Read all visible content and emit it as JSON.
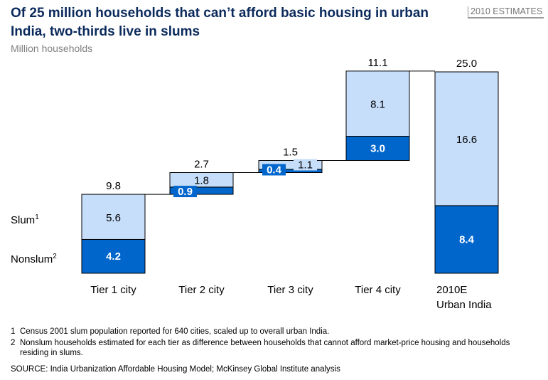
{
  "header": {
    "title": "Of 25 million households that can’t afford basic housing in urban India, two-thirds live in slums",
    "subtitle": "Million households",
    "badge": "2010 ESTIMATES"
  },
  "chart_data": {
    "type": "waterfall-stacked-bar",
    "unit": "Million households",
    "categories": [
      "Tier 1 city",
      "Tier 2 city",
      "Tier 3 city",
      "Tier 4 city",
      "2010E Urban India"
    ],
    "series": [
      {
        "name": "Nonslum",
        "superscript": "2",
        "values": [
          4.2,
          0.9,
          0.4,
          3.0,
          8.4
        ],
        "color": "#0066CC"
      },
      {
        "name": "Slum",
        "superscript": "1",
        "values": [
          5.6,
          1.8,
          1.1,
          8.1,
          16.6
        ],
        "color": "#C6DEFA"
      }
    ],
    "totals": [
      "9.8",
      "2.7",
      "1.5",
      "11.1",
      "25.0"
    ],
    "cumulative_tops": [
      9.8,
      12.5,
      14.0,
      25.1,
      25.0
    ],
    "ylim": [
      0,
      25
    ],
    "grid": false
  },
  "footnotes": [
    {
      "num": "1",
      "text": "Census 2001 slum population reported for 640 cities, scaled up to overall urban India."
    },
    {
      "num": "2",
      "text": "Nonslum households estimated for each tier as difference between households that cannot afford market-price housing and households residing in slums."
    }
  ],
  "source": "SOURCE: India Urbanization Affordable Housing Model; McKinsey Global Institute analysis"
}
